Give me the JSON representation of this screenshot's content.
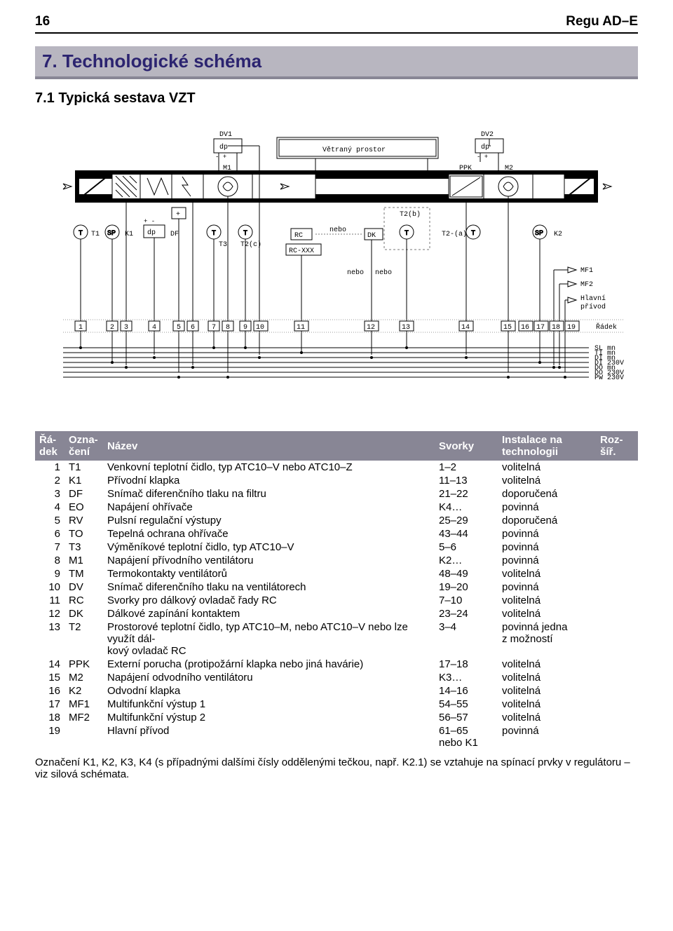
{
  "header": {
    "page_num": "16",
    "doc_title": "Regu AD–E"
  },
  "section": {
    "number_title": "7. Technologické schéma"
  },
  "subsection": {
    "number_title": "7.1  Typická sestava VZT"
  },
  "diagram": {
    "labels": {
      "dv1": "DV1",
      "dv2": "DV2",
      "dp": "dp",
      "vetrany": "Větraný prostor",
      "m1": "M1",
      "m2": "M2",
      "ppk": "PPK",
      "t": "T",
      "t1": "T1",
      "sp": "SP",
      "k1": "K1",
      "df": "DF",
      "t3": "T3",
      "t2c": "T2(c)",
      "rc": "RC",
      "rcxxx": "RC-XXX",
      "nebo": "nebo",
      "dk": "DK",
      "t2b": "T2(b)",
      "t2a": "T2-(a)",
      "k2": "K2",
      "mf1": "MF1",
      "mf2": "MF2",
      "hlavni": "Hlavní",
      "privod": "přívod",
      "radek": "Řádek",
      "bus_lines": [
        "SL mn",
        "TI mn",
        "DI mn",
        "DI 230V",
        "DO mn",
        "DO 230V",
        "PW 230V"
      ],
      "col_nums": [
        "1",
        "2",
        "3",
        "4",
        "5",
        "6",
        "7",
        "8",
        "9",
        "10",
        "11",
        "12",
        "13",
        "14",
        "15",
        "16",
        "17",
        "18",
        "19"
      ]
    },
    "colors": {
      "bg": "#ffffff",
      "black": "#000000",
      "grey_fill": "#d0d0d0",
      "dash": "#777777"
    }
  },
  "table": {
    "headers": {
      "c1a": "Řá-",
      "c1b": "dek",
      "c2a": "Ozna-",
      "c2b": "čení",
      "c3": "Název",
      "c4": "Svorky",
      "c5a": "Instalace na",
      "c5b": "technologii",
      "c6a": "Roz-",
      "c6b": "šíř."
    },
    "rows": [
      {
        "n": "1",
        "o": "T1",
        "name": "Venkovní teplotní čidlo, typ ATC10–V nebo ATC10–Z",
        "sv": "1–2",
        "inst": "volitelná",
        "r": ""
      },
      {
        "n": "2",
        "o": "K1",
        "name": "Přívodní klapka",
        "sv": "11–13",
        "inst": "volitelná",
        "r": ""
      },
      {
        "n": "3",
        "o": "DF",
        "name": "Snímač diferenčního tlaku na filtru",
        "sv": "21–22",
        "inst": "doporučená",
        "r": ""
      },
      {
        "n": "4",
        "o": "EO",
        "name": "Napájení ohřívače",
        "sv": "K4…",
        "inst": "povinná",
        "r": ""
      },
      {
        "n": "5",
        "o": "RV",
        "name": "Pulsní regulační výstupy",
        "sv": "25–29",
        "inst": "doporučená",
        "r": ""
      },
      {
        "n": "6",
        "o": "TO",
        "name": "Tepelná ochrana ohřívače",
        "sv": "43–44",
        "inst": "povinná",
        "r": ""
      },
      {
        "n": "7",
        "o": "T3",
        "name": "Výměníkové teplotní čidlo, typ ATC10–V",
        "sv": "5–6",
        "inst": "povinná",
        "r": ""
      },
      {
        "n": "8",
        "o": "M1",
        "name": "Napájení přívodního ventilátoru",
        "sv": "K2…",
        "inst": "povinná",
        "r": ""
      },
      {
        "n": "9",
        "o": "TM",
        "name": "Termokontakty ventilátorů",
        "sv": "48–49",
        "inst": "volitelná",
        "r": ""
      },
      {
        "n": "10",
        "o": "DV",
        "name": "Snímač diferenčního tlaku na ventilátorech",
        "sv": "19–20",
        "inst": "povinná",
        "r": ""
      },
      {
        "n": "11",
        "o": "RC",
        "name": "Svorky pro dálkový ovladač řady RC",
        "sv": "7–10",
        "inst": "volitelná",
        "r": ""
      },
      {
        "n": "12",
        "o": "DK",
        "name": "Dálkové zapínání kontaktem",
        "sv": "23–24",
        "inst": "volitelná",
        "r": ""
      },
      {
        "n": "13",
        "o": "T2",
        "name": "Prostorové teplotní čidlo, typ ATC10–M, nebo ATC10–V nebo lze využít dál-\nkový ovladač RC",
        "sv": "3–4",
        "inst": "povinná jedna\nz možností",
        "r": ""
      },
      {
        "n": "14",
        "o": "PPK",
        "name": "Externí porucha (protipožární klapka nebo jiná havárie)",
        "sv": "17–18",
        "inst": "volitelná",
        "r": ""
      },
      {
        "n": "15",
        "o": "M2",
        "name": "Napájení odvodního ventilátoru",
        "sv": "K3…",
        "inst": "volitelná",
        "r": ""
      },
      {
        "n": "16",
        "o": "K2",
        "name": "Odvodní klapka",
        "sv": "14–16",
        "inst": "volitelná",
        "r": ""
      },
      {
        "n": "17",
        "o": "MF1",
        "name": "Multifunkční výstup 1",
        "sv": "54–55",
        "inst": "volitelná",
        "r": ""
      },
      {
        "n": "18",
        "o": "MF2",
        "name": "Multifunkční výstup 2",
        "sv": "56–57",
        "inst": "volitelná",
        "r": ""
      },
      {
        "n": "19",
        "o": "",
        "name": "Hlavní přívod",
        "sv": "61–65\nnebo K1",
        "inst": "povinná",
        "r": ""
      }
    ]
  },
  "footnote": {
    "text": "Označení K1, K2, K3, K4 (s případnými dalšími čísly oddělenými tečkou, např. K2.1) se vztahuje na spínací prvky v regulátoru – viz silová schémata."
  }
}
